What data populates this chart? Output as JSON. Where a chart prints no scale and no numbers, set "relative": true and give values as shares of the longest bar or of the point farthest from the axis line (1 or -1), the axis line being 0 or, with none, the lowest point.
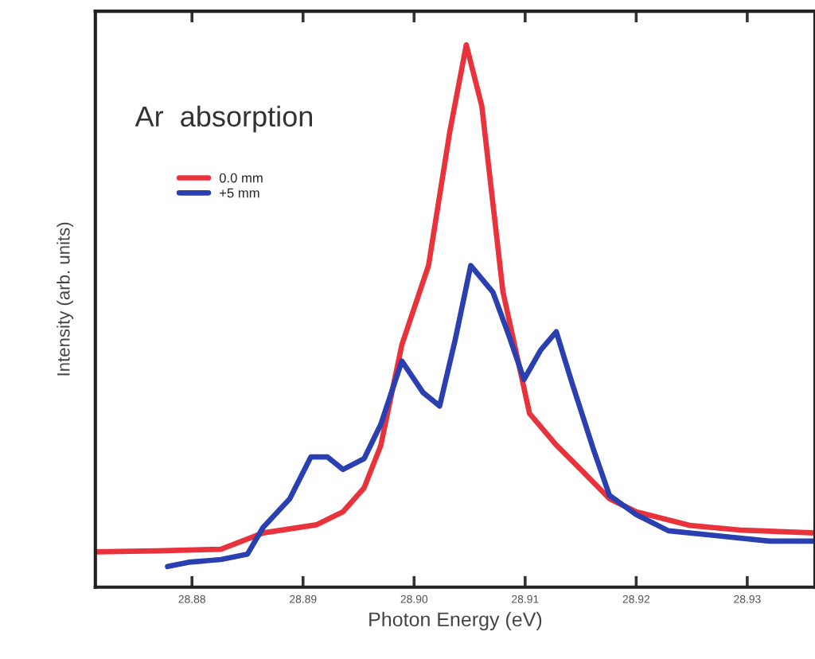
{
  "chart_data": {
    "type": "line",
    "relative": true,
    "xlabel": "Photon Energy (eV)",
    "ylabel": "Intensity (arb. units)",
    "annotations": [
      "Ar  absorption"
    ],
    "xlim": [
      28.8713,
      28.9361
    ],
    "xticks": [
      28.88,
      28.89,
      {
        "value": 28.9,
        "label": "28.90"
      },
      28.91,
      28.92,
      28.93
    ],
    "legend": "top left",
    "grid": false,
    "series": [
      {
        "name": "0.0 mm",
        "color": "#e8323c",
        "x": [
          28.8713,
          28.8768,
          28.8826,
          28.8864,
          28.8912,
          28.8936,
          28.8955,
          28.897,
          28.8989,
          28.9013,
          28.9032,
          28.9047,
          28.9061,
          28.908,
          28.9104,
          28.9128,
          28.9152,
          28.9176,
          28.92,
          28.9248,
          28.9296,
          28.9361
        ],
        "values": [
          0.065,
          0.067,
          0.07,
          0.1,
          0.115,
          0.139,
          0.183,
          0.261,
          0.447,
          0.593,
          0.838,
          1.0,
          0.887,
          0.545,
          0.32,
          0.262,
          0.213,
          0.163,
          0.139,
          0.114,
          0.105,
          0.1
        ]
      },
      {
        "name": "+5 mm",
        "color": "#2a3fb0",
        "x": [
          28.8778,
          28.8797,
          28.8826,
          28.885,
          28.8864,
          28.8888,
          28.8907,
          28.8922,
          28.8936,
          28.8955,
          28.897,
          28.8989,
          28.9008,
          28.9023,
          28.9037,
          28.9051,
          28.9071,
          28.9085,
          28.9099,
          28.9114,
          28.9128,
          28.9142,
          28.9162,
          28.9176,
          28.92,
          28.9229,
          28.9272,
          28.932,
          28.9361
        ],
        "values": [
          0.038,
          0.046,
          0.051,
          0.061,
          0.11,
          0.163,
          0.24,
          0.24,
          0.217,
          0.237,
          0.3,
          0.417,
          0.359,
          0.334,
          0.456,
          0.593,
          0.544,
          0.466,
          0.383,
          0.437,
          0.471,
          0.378,
          0.251,
          0.169,
          0.134,
          0.104,
          0.095,
          0.085,
          0.085
        ]
      }
    ]
  }
}
